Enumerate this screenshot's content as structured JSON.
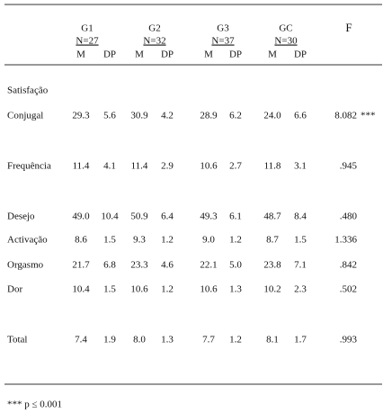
{
  "header": {
    "groups": [
      {
        "name": "G1",
        "n": "N=27"
      },
      {
        "name": "G2",
        "n": "N=32"
      },
      {
        "name": "G3",
        "n": "N=37"
      },
      {
        "name": "GC",
        "n": "N=30"
      }
    ],
    "subheaders": [
      "M",
      "DP"
    ],
    "f": "F"
  },
  "rows": [
    {
      "label": "Satisfação"
    },
    {
      "label": "Conjugal",
      "values": [
        "29.3",
        "5.6",
        "30.9",
        "4.2",
        "28.9",
        "6.2",
        "24.0",
        "6.6"
      ],
      "f": "8.082",
      "sig": "***"
    },
    {
      "label": "Frequência",
      "values": [
        "11.4",
        "4.1",
        "11.4",
        "2.9",
        "10.6",
        "2.7",
        "11.8",
        "3.1"
      ],
      "f": ".945"
    },
    {
      "label": "Desejo",
      "values": [
        "49.0",
        "10.4",
        "50.9",
        "6.4",
        "49.3",
        "6.1",
        "48.7",
        "8.4"
      ],
      "f": ".480"
    },
    {
      "label": "Activação",
      "values": [
        "8.6",
        "1.5",
        "9.3",
        "1.2",
        "9.0",
        "1.2",
        "8.7",
        "1.5"
      ],
      "f": "1.336"
    },
    {
      "label": "Orgasmo",
      "values": [
        "21.7",
        "6.8",
        "23.3",
        "4.6",
        "22.1",
        "5.0",
        "23.8",
        "7.1"
      ],
      "f": ".842"
    },
    {
      "label": "Dor",
      "values": [
        "10.4",
        "1.5",
        "10.6",
        "1.2",
        "10.6",
        "1.3",
        "10.2",
        "2.3"
      ],
      "f": ".502"
    },
    {
      "label": "Total",
      "values": [
        "7.4",
        "1.9",
        "8.0",
        "1.3",
        "7.7",
        "1.2",
        "8.1",
        "1.7"
      ],
      "f": ".993"
    }
  ],
  "footnote": "*** p ≤ 0.001"
}
